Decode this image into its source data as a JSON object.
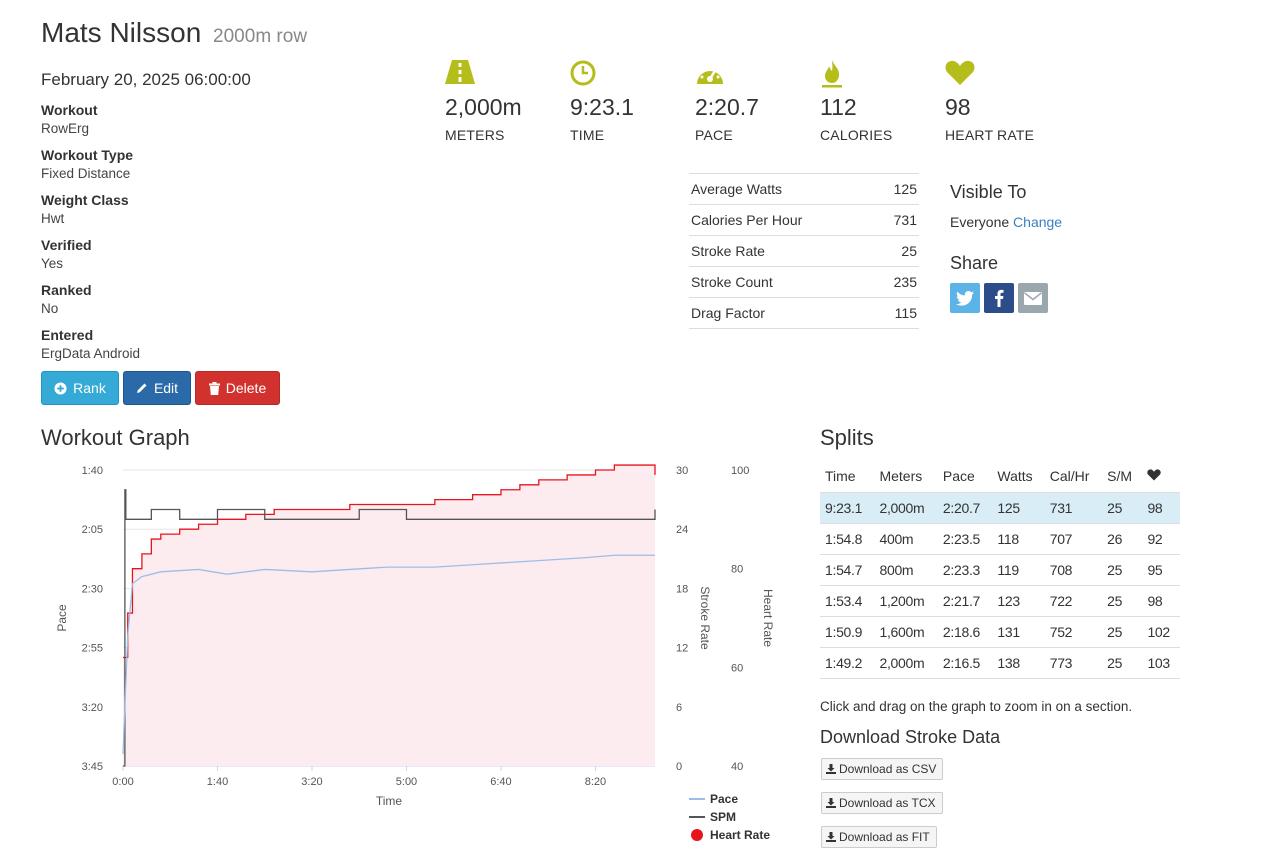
{
  "header": {
    "name": "Mats Nilsson",
    "subtitle": "2000m row",
    "date": "February 20, 2025 06:00:00"
  },
  "info": [
    {
      "label": "Workout",
      "value": "RowErg"
    },
    {
      "label": "Workout Type",
      "value": "Fixed Distance"
    },
    {
      "label": "Weight Class",
      "value": "Hwt"
    },
    {
      "label": "Verified",
      "value": "Yes"
    },
    {
      "label": "Ranked",
      "value": "No"
    },
    {
      "label": "Entered",
      "value": "ErgData Android"
    }
  ],
  "buttons": {
    "rank": "Rank",
    "edit": "Edit",
    "delete": "Delete"
  },
  "stats": [
    {
      "icon": "road-icon",
      "value": "2,000m",
      "label": "METERS"
    },
    {
      "icon": "clock-icon",
      "value": "9:23.1",
      "label": "TIME"
    },
    {
      "icon": "speedometer-icon",
      "value": "2:20.7",
      "label": "PACE"
    },
    {
      "icon": "flame-icon",
      "value": "112",
      "label": "CALORIES"
    },
    {
      "icon": "heart-icon",
      "value": "98",
      "label": "HEART RATE"
    }
  ],
  "accent_color": "#b5bd1a",
  "metrics": [
    {
      "label": "Average Watts",
      "value": "125"
    },
    {
      "label": "Calories Per Hour",
      "value": "731"
    },
    {
      "label": "Stroke Rate",
      "value": "25"
    },
    {
      "label": "Stroke Count",
      "value": "235"
    },
    {
      "label": "Drag Factor",
      "value": "115"
    }
  ],
  "visibility": {
    "title": "Visible To",
    "value": "Everyone",
    "change": "Change"
  },
  "share": {
    "title": "Share",
    "icons": [
      "twitter-icon",
      "facebook-icon",
      "email-icon"
    ]
  },
  "graph": {
    "title": "Workout Graph"
  },
  "chart_data": {
    "type": "line",
    "x_ticks": [
      "0:00",
      "1:40",
      "3:20",
      "5:00",
      "6:40",
      "8:20"
    ],
    "y_left_ticks": [
      "1:40",
      "2:05",
      "2:30",
      "2:55",
      "3:20",
      "3:45"
    ],
    "y_mid_ticks": [
      "30",
      "24",
      "18",
      "12",
      "6",
      "0"
    ],
    "y_right_ticks": [
      "100",
      "80",
      "60",
      "40"
    ],
    "xlabel": "Time",
    "ylabel_left": "Pace",
    "ylabel_mid": "Stroke Rate",
    "ylabel_right": "Heart Rate",
    "x_range_s": [
      0,
      563
    ],
    "pace_range_s": [
      100,
      225
    ],
    "spm_range": [
      0,
      30
    ],
    "hr_range": [
      40,
      100
    ],
    "grid": true,
    "legend_position": "bottom-right",
    "series": [
      {
        "name": "Pace",
        "color": "#9dbde8",
        "unit": "s/500m",
        "x": [
          0,
          5,
          10,
          20,
          40,
          80,
          110,
          150,
          200,
          240,
          280,
          330,
          370,
          410,
          450,
          490,
          520,
          563
        ],
        "values": [
          220,
          170,
          148,
          145,
          143,
          142,
          144,
          142,
          143,
          142,
          141,
          141,
          140,
          139,
          138,
          137,
          136,
          136
        ]
      },
      {
        "name": "SPM",
        "color": "#555555",
        "unit": "spm",
        "x": [
          0,
          2,
          3,
          10,
          30,
          60,
          100,
          150,
          200,
          250,
          300,
          350,
          400,
          450,
          500,
          530,
          563
        ],
        "values": [
          0,
          28,
          25,
          25,
          26,
          25,
          26,
          25,
          25,
          26,
          25,
          25,
          25,
          25,
          25,
          25,
          26
        ]
      },
      {
        "name": "Heart Rate",
        "color": "#e8141c",
        "unit": "bpm",
        "x": [
          0,
          5,
          10,
          20,
          30,
          40,
          60,
          80,
          100,
          130,
          160,
          200,
          240,
          280,
          330,
          370,
          400,
          420,
          440,
          470,
          500,
          520,
          563
        ],
        "values": [
          62,
          71,
          80,
          83,
          86,
          87,
          88,
          89,
          90,
          91,
          92,
          92,
          93,
          93,
          94,
          95,
          96,
          97,
          98,
          99,
          100,
          101,
          99
        ]
      }
    ]
  },
  "splits": {
    "title": "Splits",
    "headers": [
      "Time",
      "Meters",
      "Pace",
      "Watts",
      "Cal/Hr",
      "S/M"
    ],
    "heart_header_icon": "heart-icon",
    "rows": [
      [
        "9:23.1",
        "2,000m",
        "2:20.7",
        "125",
        "731",
        "25",
        "98"
      ],
      [
        "1:54.8",
        "400m",
        "2:23.5",
        "118",
        "707",
        "26",
        "92"
      ],
      [
        "1:54.7",
        "800m",
        "2:23.3",
        "119",
        "708",
        "25",
        "95"
      ],
      [
        "1:53.4",
        "1,200m",
        "2:21.7",
        "123",
        "722",
        "25",
        "98"
      ],
      [
        "1:50.9",
        "1,600m",
        "2:18.6",
        "131",
        "752",
        "25",
        "102"
      ],
      [
        "1:49.2",
        "2,000m",
        "2:16.5",
        "138",
        "773",
        "25",
        "103"
      ]
    ]
  },
  "drag_note": "Click and drag on the graph to zoom in on a section.",
  "downloads": {
    "title": "Download Stroke Data",
    "csv": "Download as CSV",
    "tcx": "Download as TCX",
    "fit": "Download as FIT"
  }
}
